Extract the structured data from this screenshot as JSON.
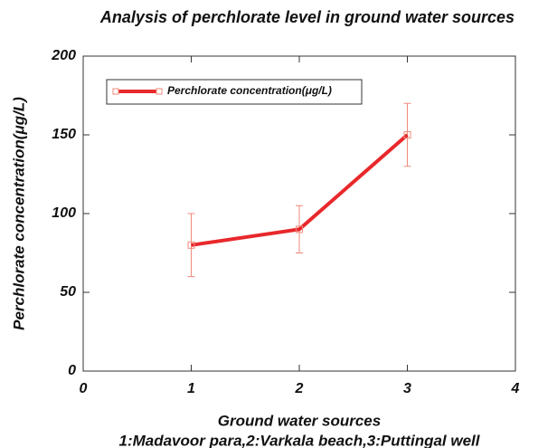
{
  "chart_data": {
    "type": "line",
    "title": "Analysis of perchlorate level in ground water sources",
    "xlabel": [
      "Ground water sources",
      "1:Madavoor para,2:Varkala beach,3:Puttingal well"
    ],
    "ylabel": "Perchlorate concentration(μg/L)",
    "x": [
      1,
      2,
      3
    ],
    "series": [
      {
        "name": "Perchlorate concentration(μg/L)",
        "color": "#e8282b",
        "error_color": "#f08a7a",
        "values": [
          80,
          90,
          150
        ],
        "errors": [
          20,
          15,
          20
        ]
      }
    ],
    "xlim": [
      0,
      4
    ],
    "xticks": [
      0,
      1,
      2,
      3,
      4
    ],
    "ylim": [
      0,
      200
    ],
    "yticks": [
      0,
      50,
      100,
      150,
      200
    ],
    "grid": false,
    "legend": "upper left"
  }
}
